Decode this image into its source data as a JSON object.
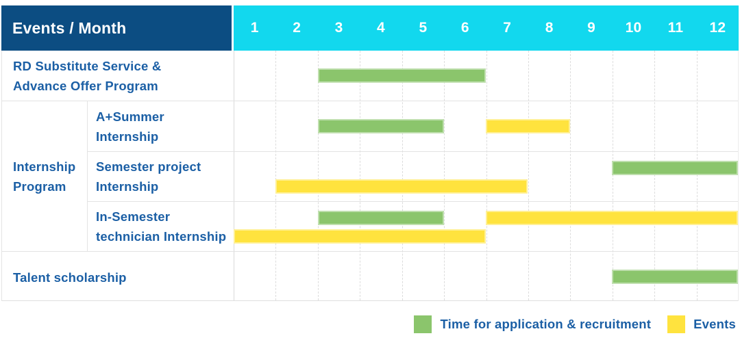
{
  "header": {
    "title": "Events / Month",
    "months": [
      "1",
      "2",
      "3",
      "4",
      "5",
      "6",
      "7",
      "8",
      "9",
      "10",
      "11",
      "12"
    ]
  },
  "labels": {
    "rd": [
      "RD Substitute Service &",
      "Advance Offer Program"
    ],
    "group_internship": [
      "Internship",
      "Program"
    ],
    "a_summer": [
      "A+Summer",
      "Internship"
    ],
    "semester_project": [
      "Semester project",
      "Internship"
    ],
    "in_semester": [
      "In-Semester",
      "technician Internship"
    ],
    "talent": [
      "Talent scholarship"
    ]
  },
  "legend": [
    {
      "type": "application",
      "label": "Time for application & recruitment"
    },
    {
      "type": "event",
      "label": "Events"
    }
  ],
  "colors": {
    "header_bg": "#0c4d82",
    "month_bg": "#12d8ee",
    "header_text": "#ffffff",
    "label_text": "#1b5fa5",
    "application": "#8bc56c",
    "event": "#ffe33e",
    "grid_line": "#dcdcdc"
  },
  "chart_data": {
    "type": "gantt",
    "title": "Events / Month",
    "x_axis": {
      "label": "Month",
      "range": [
        1,
        12
      ],
      "ticks": [
        1,
        2,
        3,
        4,
        5,
        6,
        7,
        8,
        9,
        10,
        11,
        12
      ]
    },
    "series_legend": [
      "Time for application & recruitment",
      "Events"
    ],
    "rows": [
      {
        "label": "RD Substitute Service & Advance Offer Program",
        "group": null,
        "bars": [
          {
            "type": "application",
            "series": "Time for application & recruitment",
            "start_month": 3,
            "end_month": 6,
            "lane": "mid"
          }
        ]
      },
      {
        "label": "A+Summer Internship",
        "group": "Internship Program",
        "bars": [
          {
            "type": "application",
            "series": "Time for application & recruitment",
            "start_month": 3,
            "end_month": 5,
            "lane": "mid"
          },
          {
            "type": "event",
            "series": "Events",
            "start_month": 7,
            "end_month": 8,
            "lane": "mid"
          }
        ]
      },
      {
        "label": "Semester project Internship",
        "group": "Internship Program",
        "bars": [
          {
            "type": "application",
            "series": "Time for application & recruitment",
            "start_month": 10,
            "end_month": 12,
            "lane": "top"
          },
          {
            "type": "event",
            "series": "Events",
            "start_month": 2,
            "end_month": 7,
            "lane": "bottom"
          }
        ]
      },
      {
        "label": "In-Semester technician Internship",
        "group": "Internship Program",
        "bars": [
          {
            "type": "application",
            "series": "Time for application & recruitment",
            "start_month": 3,
            "end_month": 5,
            "lane": "top"
          },
          {
            "type": "event",
            "series": "Events",
            "start_month": 7,
            "end_month": 12,
            "lane": "top"
          },
          {
            "type": "event",
            "series": "Events",
            "start_month": 1,
            "end_month": 6,
            "lane": "bottom"
          }
        ]
      },
      {
        "label": "Talent scholarship",
        "group": null,
        "bars": [
          {
            "type": "application",
            "series": "Time for application & recruitment",
            "start_month": 10,
            "end_month": 12,
            "lane": "mid"
          }
        ]
      }
    ]
  }
}
